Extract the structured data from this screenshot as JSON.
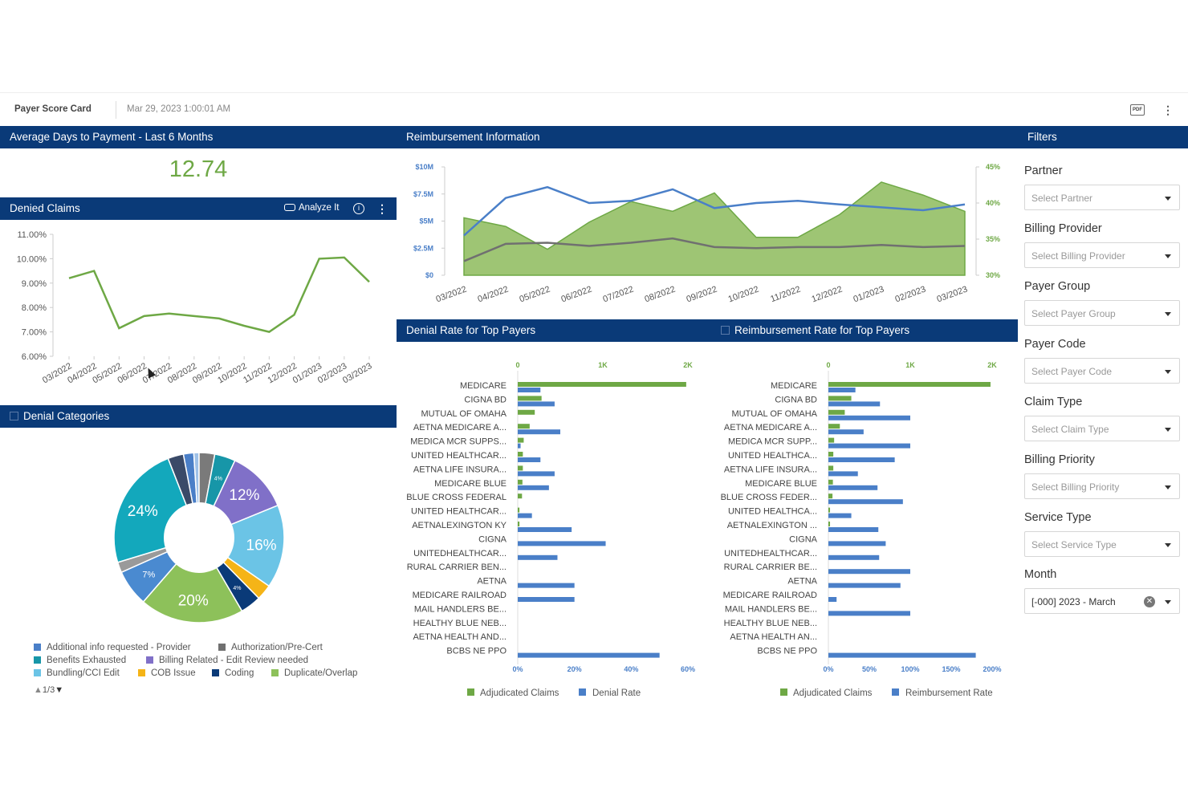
{
  "header": {
    "title": "Payer Score Card",
    "datetime": "Mar 29, 2023 1:00:01 AM",
    "pdf_label": "PDF"
  },
  "avg_days": {
    "title": "Average Days to Payment - Last 6 Months",
    "value": "12.74"
  },
  "denied_claims": {
    "title": "Denied Claims",
    "analyze_label": "Analyze It"
  },
  "reimbursement_info": {
    "title": "Reimbursement Information"
  },
  "denial_categories": {
    "title": "Denial Categories",
    "pager": "1/3"
  },
  "denial_rate": {
    "title": "Denial Rate for Top Payers"
  },
  "reimb_rate": {
    "title": "Reimbursement Rate for Top Payers"
  },
  "filters": {
    "title": "Filters",
    "items": [
      {
        "label": "Partner",
        "placeholder": "Select Partner"
      },
      {
        "label": "Billing Provider",
        "placeholder": "Select Billing Provider"
      },
      {
        "label": "Payer Group",
        "placeholder": "Select Payer Group"
      },
      {
        "label": "Payer Code",
        "placeholder": "Select Payer Code"
      },
      {
        "label": "Claim Type",
        "placeholder": "Select Claim Type"
      },
      {
        "label": "Billing Priority",
        "placeholder": "Select Billing Priority"
      },
      {
        "label": "Service Type",
        "placeholder": "Select Service Type"
      }
    ],
    "month": {
      "label": "Month",
      "value": "[-000] 2023 - March"
    }
  },
  "colors": {
    "header": "#0a3a78",
    "green": "#6ea845",
    "blue": "#4a7fc8",
    "gray": "#707070"
  },
  "chart_data": [
    {
      "type": "line",
      "name": "denied-claims",
      "x": [
        "03/2022",
        "04/2022",
        "05/2022",
        "06/2022",
        "07/2022",
        "08/2022",
        "09/2022",
        "10/2022",
        "11/2022",
        "12/2022",
        "01/2023",
        "02/2023",
        "03/2023"
      ],
      "values": [
        9.2,
        9.5,
        7.15,
        7.65,
        7.75,
        7.65,
        7.55,
        7.25,
        7.0,
        7.7,
        10.0,
        10.05,
        9.05
      ],
      "yticks": [
        "11.00%",
        "10.00%",
        "9.00%",
        "8.00%",
        "7.00%",
        "6.00%"
      ],
      "ylim": [
        6,
        11
      ]
    },
    {
      "type": "area",
      "name": "reimbursement-information",
      "x": [
        "03/2022",
        "04/2022",
        "05/2022",
        "06/2022",
        "07/2022",
        "08/2022",
        "09/2022",
        "10/2022",
        "11/2022",
        "12/2022",
        "01/2023",
        "02/2023",
        "03/2023"
      ],
      "left_ticks": [
        "$0",
        "$2.5M",
        "$5M",
        "$7.5M",
        "$10M"
      ],
      "right_ticks": [
        "30%",
        "35%",
        "40%",
        "45%"
      ],
      "ylim_left": [
        0,
        10
      ],
      "ylim_right": [
        30,
        45
      ],
      "series": [
        {
          "kind": "area-left",
          "values": [
            5.3,
            4.5,
            2.4,
            4.9,
            6.8,
            5.9,
            7.6,
            3.5,
            3.5,
            5.6,
            8.6,
            7.4,
            5.9
          ]
        },
        {
          "kind": "line-right",
          "values": [
            35.5,
            40.7,
            42.2,
            40.0,
            40.3,
            41.9,
            39.3,
            40.0,
            40.3,
            39.8,
            39.4,
            39.0,
            39.8
          ]
        },
        {
          "kind": "line-left",
          "values": [
            1.3,
            2.9,
            3.0,
            2.7,
            3.0,
            3.4,
            2.6,
            2.5,
            2.6,
            2.6,
            2.8,
            2.6,
            2.7
          ]
        }
      ]
    },
    {
      "type": "pie",
      "name": "denial-categories",
      "slices": [
        {
          "label": "Additional info requested - Provider",
          "value": 2,
          "color": "#4a7fc8"
        },
        {
          "label": "",
          "value": 1,
          "color": "#9ec1e8"
        },
        {
          "label": "Authorization/Pre-Cert",
          "value": 3,
          "color": "#7a7a7a"
        },
        {
          "label": "Benefits Exhausted",
          "value": 4,
          "color": "#1796a8",
          "text": "4%"
        },
        {
          "label": "Billing Related - Edit Review needed",
          "value": 12,
          "color": "#8070c8",
          "text": "12%"
        },
        {
          "label": "Bundling/CCI Edit",
          "value": 16,
          "color": "#6bc4e6",
          "text": "16%"
        },
        {
          "label": "COB Issue",
          "value": 3,
          "color": "#f5b417"
        },
        {
          "label": "Coding",
          "value": 4,
          "color": "#0a3a78",
          "text": "4%"
        },
        {
          "label": "Duplicate/Overlap",
          "value": 20,
          "color": "#8dc15a",
          "text": "20%"
        },
        {
          "label": "",
          "value": 7,
          "color": "#4a8ad0",
          "text": "7%"
        },
        {
          "label": "",
          "value": 2,
          "color": "#9a9a9a"
        },
        {
          "label": "",
          "value": 24,
          "color": "#13a8bc",
          "text": "24%"
        },
        {
          "label": "",
          "value": 3,
          "color": "#3a4a68"
        }
      ],
      "legend": [
        {
          "label": "Additional info requested - Provider",
          "color": "#4a7fc8"
        },
        {
          "label": "Authorization/Pre-Cert",
          "color": "#707070"
        },
        {
          "label": "Benefits Exhausted",
          "color": "#1796a8"
        },
        {
          "label": "Billing Related - Edit Review needed",
          "color": "#8070c8"
        },
        {
          "label": "Bundling/CCI Edit",
          "color": "#6bc4e6"
        },
        {
          "label": "COB Issue",
          "color": "#f5b417"
        },
        {
          "label": "Coding",
          "color": "#0a3a78"
        },
        {
          "label": "Duplicate/Overlap",
          "color": "#8dc15a"
        }
      ]
    },
    {
      "type": "bar",
      "name": "denial-rate-top-payers",
      "categories": [
        "MEDICARE",
        "CIGNA BD",
        "MUTUAL OF OMAHA",
        "AETNA MEDICARE A...",
        "MEDICA MCR SUPPS...",
        "UNITED HEALTHCAR...",
        "AETNA LIFE INSURA...",
        "MEDICARE BLUE",
        "BLUE CROSS FEDERAL",
        "UNITED HEALTHCAR...",
        "AETNALEXINGTON KY",
        "CIGNA",
        "UNITEDHEALTHCAR...",
        "RURAL CARRIER BEN...",
        "AETNA",
        "MEDICARE RAILROAD",
        "MAIL HANDLERS BE...",
        "HEALTHY BLUE NEB...",
        "AETNA HEALTH AND...",
        "BCBS NE PPO"
      ],
      "top_ticks": [
        "0",
        "1K",
        "2K"
      ],
      "bottom_ticks": [
        "0%",
        "20%",
        "40%",
        "60%"
      ],
      "series": [
        {
          "name": "Adjudicated Claims",
          "color": "#6ea845",
          "max": 2000,
          "values": [
            1980,
            280,
            200,
            140,
            70,
            60,
            60,
            55,
            50,
            20,
            20,
            0,
            0,
            0,
            0,
            0,
            0,
            0,
            0,
            0
          ]
        },
        {
          "name": "Denial Rate",
          "color": "#4a7fc8",
          "max": 60,
          "values": [
            8,
            13,
            0,
            15,
            1,
            8,
            13,
            11,
            0,
            5,
            19,
            31,
            14,
            0,
            20,
            20,
            0,
            0,
            0,
            50
          ]
        }
      ]
    },
    {
      "type": "bar",
      "name": "reimbursement-rate-top-payers",
      "categories": [
        "MEDICARE",
        "CIGNA BD",
        "MUTUAL OF OMAHA",
        "AETNA MEDICARE A...",
        "MEDICA MCR SUPP...",
        "UNITED HEALTHCA...",
        "AETNA LIFE INSURA...",
        "MEDICARE BLUE",
        "BLUE CROSS FEDER...",
        "UNITED HEALTHCA...",
        "AETNALEXINGTON ...",
        "CIGNA",
        "UNITEDHEALTHCAR...",
        "RURAL CARRIER BE...",
        "AETNA",
        "MEDICARE RAILROAD",
        "MAIL HANDLERS BE...",
        "HEALTHY BLUE NEB...",
        "AETNA HEALTH AN...",
        "BCBS NE PPO"
      ],
      "top_ticks": [
        "0",
        "1K",
        "2K"
      ],
      "bottom_ticks": [
        "0%",
        "50%",
        "100%",
        "150%",
        "200%"
      ],
      "series": [
        {
          "name": "Adjudicated Claims",
          "color": "#6ea845",
          "max": 2000,
          "values": [
            1980,
            280,
            200,
            140,
            70,
            60,
            60,
            55,
            50,
            20,
            20,
            0,
            0,
            0,
            0,
            0,
            0,
            0,
            0,
            0
          ]
        },
        {
          "name": "Reimbursement Rate",
          "color": "#4a7fc8",
          "max": 200,
          "values": [
            33,
            63,
            100,
            43,
            100,
            81,
            36,
            60,
            91,
            28,
            61,
            70,
            62,
            100,
            88,
            10,
            100,
            0,
            0,
            180
          ]
        }
      ]
    }
  ]
}
